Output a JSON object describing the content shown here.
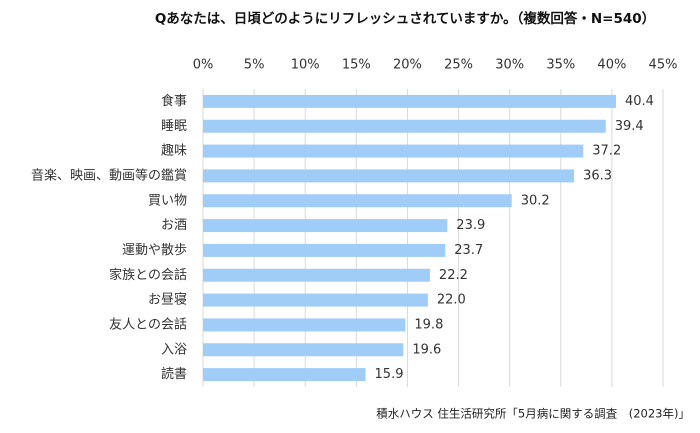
{
  "chart_data": {
    "type": "bar",
    "orientation": "horizontal",
    "title": "Qあなたは、日頃どのようにリフレッシュされていますか。（複数回答・N=540）",
    "categories": [
      "食事",
      "睡眠",
      "趣味",
      "音楽、映画、動画等の鑑賞",
      "買い物",
      "お酒",
      "運動や散歩",
      "家族との会話",
      "お昼寝",
      "友人との会話",
      "入浴",
      "読書"
    ],
    "values": [
      40.4,
      39.4,
      37.2,
      36.3,
      30.2,
      23.9,
      23.7,
      22.2,
      22.0,
      19.8,
      19.6,
      15.9
    ],
    "value_labels": [
      "40.4",
      "39.4",
      "37.2",
      "36.3",
      "30.2",
      "23.9",
      "23.7",
      "22.2",
      "22.0",
      "19.8",
      "19.6",
      "15.9"
    ],
    "color": "#9fcdf7",
    "xlim": [
      0,
      45
    ],
    "xticks": [
      {
        "value": 0,
        "label": "0%"
      },
      {
        "value": 5,
        "label": "5%"
      },
      {
        "value": 10,
        "label": "10%"
      },
      {
        "value": 15,
        "label": "15%"
      },
      {
        "value": 20,
        "label": "20%"
      },
      {
        "value": 25,
        "label": "25%"
      },
      {
        "value": 30,
        "label": "30%"
      },
      {
        "value": 35,
        "label": "35%"
      },
      {
        "value": 40,
        "label": "40%"
      },
      {
        "value": 45,
        "label": "45%"
      }
    ],
    "grid": true,
    "source": "積水ハウス 住生活研究所「5月病に関する調査　(2023年)」"
  }
}
